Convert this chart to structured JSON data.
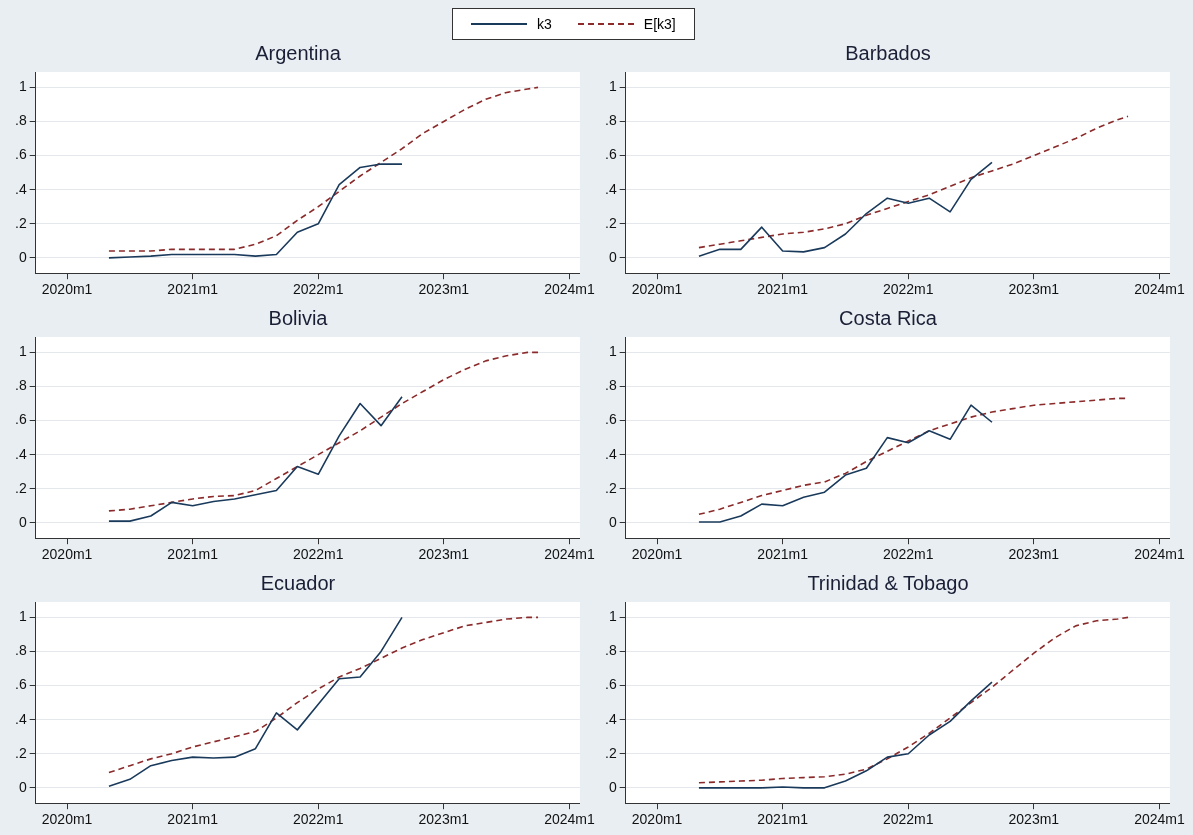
{
  "chart_data": [
    {
      "type": "line",
      "title": "Argentina",
      "legend": "top",
      "grid": "y",
      "line_style": "solid",
      "marker": "none",
      "xlim": [
        "2019-10",
        "2024-02"
      ],
      "ylim": [
        -0.09,
        1.09
      ],
      "xticks": [
        {
          "value": "2020-01",
          "label": "2020m1"
        },
        {
          "value": "2021-01",
          "label": "2021m1"
        },
        {
          "value": "2022-01",
          "label": "2022m1"
        },
        {
          "value": "2023-01",
          "label": "2023m1"
        },
        {
          "value": "2024-01",
          "label": "2024m1"
        }
      ],
      "yticks": [
        {
          "value": 0,
          "label": "0"
        },
        {
          "value": 0.2,
          "label": ".2"
        },
        {
          "value": 0.4,
          "label": ".4"
        },
        {
          "value": 0.6,
          "label": ".6"
        },
        {
          "value": 0.8,
          "label": ".8"
        },
        {
          "value": 1,
          "label": "1"
        }
      ],
      "series": [
        {
          "name": "k3",
          "color": "#1a3a5c",
          "x": [
            "2020-05",
            "2020-07",
            "2020-09",
            "2020-11",
            "2021-01",
            "2021-03",
            "2021-05",
            "2021-07",
            "2021-09",
            "2021-11",
            "2022-01",
            "2022-03",
            "2022-05",
            "2022-07",
            "2022-09"
          ],
          "values": [
            0,
            0.005,
            0.01,
            0.02,
            0.02,
            0.02,
            0.02,
            0.01,
            0.02,
            0.15,
            0.2,
            0.43,
            0.53,
            0.55,
            0.55
          ]
        },
        {
          "name": "E[k3]",
          "color": "#8b2a2a",
          "line_style": "dashed",
          "x": [
            "2020-05",
            "2020-07",
            "2020-09",
            "2020-11",
            "2021-01",
            "2021-03",
            "2021-05",
            "2021-07",
            "2021-09",
            "2021-11",
            "2022-01",
            "2022-03",
            "2022-05",
            "2022-07",
            "2022-09",
            "2022-11",
            "2023-01",
            "2023-03",
            "2023-05",
            "2023-07",
            "2023-09",
            "2023-10"
          ],
          "values": [
            0.04,
            0.04,
            0.04,
            0.05,
            0.05,
            0.05,
            0.05,
            0.08,
            0.13,
            0.22,
            0.3,
            0.39,
            0.48,
            0.56,
            0.64,
            0.73,
            0.8,
            0.87,
            0.93,
            0.97,
            0.99,
            1
          ]
        }
      ]
    },
    {
      "type": "line",
      "title": "Barbados",
      "grid": "y",
      "line_style": "solid",
      "marker": "none",
      "xlim": [
        "2019-10",
        "2024-02"
      ],
      "ylim": [
        -0.09,
        1.09
      ],
      "xticks": [
        {
          "value": "2020-01",
          "label": "2020m1"
        },
        {
          "value": "2021-01",
          "label": "2021m1"
        },
        {
          "value": "2022-01",
          "label": "2022m1"
        },
        {
          "value": "2023-01",
          "label": "2023m1"
        },
        {
          "value": "2024-01",
          "label": "2024m1"
        }
      ],
      "yticks": [
        {
          "value": 0,
          "label": "0"
        },
        {
          "value": 0.2,
          "label": ".2"
        },
        {
          "value": 0.4,
          "label": ".4"
        },
        {
          "value": 0.6,
          "label": ".6"
        },
        {
          "value": 0.8,
          "label": ".8"
        },
        {
          "value": 1,
          "label": "1"
        }
      ],
      "series": [
        {
          "color": "#1a3a5c",
          "x": [
            "2020-05",
            "2020-07",
            "2020-09",
            "2020-11",
            "2021-01",
            "2021-03",
            "2021-05",
            "2021-07",
            "2021-09",
            "2021-11",
            "2022-01",
            "2022-03",
            "2022-05",
            "2022-07",
            "2022-09"
          ],
          "values": [
            0.01,
            0.05,
            0.05,
            0.18,
            0.04,
            0.035,
            0.06,
            0.14,
            0.26,
            0.35,
            0.32,
            0.35,
            0.27,
            0.46,
            0.56
          ]
        },
        {
          "color": "#8b2a2a",
          "line_style": "dashed",
          "x": [
            "2020-05",
            "2020-07",
            "2020-09",
            "2020-11",
            "2021-01",
            "2021-03",
            "2021-05",
            "2021-07",
            "2021-09",
            "2021-11",
            "2022-01",
            "2022-03",
            "2022-05",
            "2022-07",
            "2022-09",
            "2022-11",
            "2023-01",
            "2023-03",
            "2023-05",
            "2023-07",
            "2023-09",
            "2023-10"
          ],
          "values": [
            0.06,
            0.08,
            0.1,
            0.12,
            0.14,
            0.15,
            0.17,
            0.2,
            0.25,
            0.29,
            0.33,
            0.37,
            0.42,
            0.47,
            0.51,
            0.55,
            0.6,
            0.65,
            0.7,
            0.76,
            0.81,
            0.83
          ]
        }
      ]
    },
    {
      "type": "line",
      "title": "Bolivia",
      "grid": "y",
      "line_style": "solid",
      "marker": "none",
      "xlim": [
        "2019-10",
        "2024-02"
      ],
      "ylim": [
        -0.09,
        1.09
      ],
      "xticks": [
        {
          "value": "2020-01",
          "label": "2020m1"
        },
        {
          "value": "2021-01",
          "label": "2021m1"
        },
        {
          "value": "2022-01",
          "label": "2022m1"
        },
        {
          "value": "2023-01",
          "label": "2023m1"
        },
        {
          "value": "2024-01",
          "label": "2024m1"
        }
      ],
      "yticks": [
        {
          "value": 0,
          "label": "0"
        },
        {
          "value": 0.2,
          "label": ".2"
        },
        {
          "value": 0.4,
          "label": ".4"
        },
        {
          "value": 0.6,
          "label": ".6"
        },
        {
          "value": 0.8,
          "label": ".8"
        },
        {
          "value": 1,
          "label": "1"
        }
      ],
      "series": [
        {
          "color": "#1a3a5c",
          "x": [
            "2020-05",
            "2020-07",
            "2020-09",
            "2020-11",
            "2021-01",
            "2021-03",
            "2021-05",
            "2021-07",
            "2021-09",
            "2021-11",
            "2022-01",
            "2022-03",
            "2022-05",
            "2022-07",
            "2022-09"
          ],
          "values": [
            0.01,
            0.01,
            0.04,
            0.12,
            0.1,
            0.125,
            0.14,
            0.165,
            0.19,
            0.33,
            0.285,
            0.51,
            0.7,
            0.57,
            0.74
          ]
        },
        {
          "color": "#8b2a2a",
          "line_style": "dashed",
          "x": [
            "2020-05",
            "2020-07",
            "2020-09",
            "2020-11",
            "2021-01",
            "2021-03",
            "2021-05",
            "2021-07",
            "2021-09",
            "2021-11",
            "2022-01",
            "2022-03",
            "2022-05",
            "2022-07",
            "2022-09",
            "2022-11",
            "2023-01",
            "2023-03",
            "2023-05",
            "2023-07",
            "2023-09",
            "2023-10"
          ],
          "values": [
            0.07,
            0.08,
            0.1,
            0.12,
            0.14,
            0.155,
            0.16,
            0.19,
            0.26,
            0.33,
            0.4,
            0.47,
            0.54,
            0.62,
            0.7,
            0.77,
            0.84,
            0.9,
            0.95,
            0.98,
            1,
            1
          ]
        }
      ]
    },
    {
      "type": "line",
      "title": "Costa Rica",
      "grid": "y",
      "line_style": "solid",
      "marker": "none",
      "xlim": [
        "2019-10",
        "2024-02"
      ],
      "ylim": [
        -0.09,
        1.09
      ],
      "xticks": [
        {
          "value": "2020-01",
          "label": "2020m1"
        },
        {
          "value": "2021-01",
          "label": "2021m1"
        },
        {
          "value": "2022-01",
          "label": "2022m1"
        },
        {
          "value": "2023-01",
          "label": "2023m1"
        },
        {
          "value": "2024-01",
          "label": "2024m1"
        }
      ],
      "yticks": [
        {
          "value": 0,
          "label": "0"
        },
        {
          "value": 0.2,
          "label": ".2"
        },
        {
          "value": 0.4,
          "label": ".4"
        },
        {
          "value": 0.6,
          "label": ".6"
        },
        {
          "value": 0.8,
          "label": ".8"
        },
        {
          "value": 1,
          "label": "1"
        }
      ],
      "series": [
        {
          "color": "#1a3a5c",
          "x": [
            "2020-05",
            "2020-07",
            "2020-09",
            "2020-11",
            "2021-01",
            "2021-03",
            "2021-05",
            "2021-07",
            "2021-09",
            "2021-11",
            "2022-01",
            "2022-03",
            "2022-05",
            "2022-07",
            "2022-09"
          ],
          "values": [
            0.005,
            0.005,
            0.04,
            0.11,
            0.1,
            0.15,
            0.18,
            0.28,
            0.32,
            0.5,
            0.47,
            0.54,
            0.49,
            0.69,
            0.59
          ]
        },
        {
          "color": "#8b2a2a",
          "line_style": "dashed",
          "x": [
            "2020-05",
            "2020-07",
            "2020-09",
            "2020-11",
            "2021-01",
            "2021-03",
            "2021-05",
            "2021-07",
            "2021-09",
            "2021-11",
            "2022-01",
            "2022-03",
            "2022-05",
            "2022-07",
            "2022-09",
            "2022-11",
            "2023-01",
            "2023-03",
            "2023-05",
            "2023-07",
            "2023-09",
            "2023-10"
          ],
          "values": [
            0.05,
            0.08,
            0.12,
            0.16,
            0.19,
            0.22,
            0.24,
            0.29,
            0.36,
            0.42,
            0.48,
            0.54,
            0.58,
            0.62,
            0.65,
            0.67,
            0.69,
            0.7,
            0.71,
            0.72,
            0.73,
            0.73
          ]
        }
      ]
    },
    {
      "type": "line",
      "title": "Ecuador",
      "grid": "y",
      "line_style": "solid",
      "marker": "none",
      "xlim": [
        "2019-10",
        "2024-02"
      ],
      "ylim": [
        -0.09,
        1.09
      ],
      "xticks": [
        {
          "value": "2020-01",
          "label": "2020m1"
        },
        {
          "value": "2021-01",
          "label": "2021m1"
        },
        {
          "value": "2022-01",
          "label": "2022m1"
        },
        {
          "value": "2023-01",
          "label": "2023m1"
        },
        {
          "value": "2024-01",
          "label": "2024m1"
        }
      ],
      "yticks": [
        {
          "value": 0,
          "label": "0"
        },
        {
          "value": 0.2,
          "label": ".2"
        },
        {
          "value": 0.4,
          "label": ".4"
        },
        {
          "value": 0.6,
          "label": ".6"
        },
        {
          "value": 0.8,
          "label": ".8"
        },
        {
          "value": 1,
          "label": "1"
        }
      ],
      "series": [
        {
          "color": "#1a3a5c",
          "x": [
            "2020-05",
            "2020-07",
            "2020-09",
            "2020-11",
            "2021-01",
            "2021-03",
            "2021-05",
            "2021-07",
            "2021-09",
            "2021-11",
            "2022-01",
            "2022-03",
            "2022-05",
            "2022-07",
            "2022-09"
          ],
          "values": [
            0.01,
            0.05,
            0.13,
            0.16,
            0.18,
            0.175,
            0.18,
            0.23,
            0.44,
            0.34,
            0.49,
            0.64,
            0.65,
            0.8,
            1
          ]
        },
        {
          "color": "#8b2a2a",
          "line_style": "dashed",
          "x": [
            "2020-05",
            "2020-07",
            "2020-09",
            "2020-11",
            "2021-01",
            "2021-03",
            "2021-05",
            "2021-07",
            "2021-09",
            "2021-11",
            "2022-01",
            "2022-03",
            "2022-05",
            "2022-07",
            "2022-09",
            "2022-11",
            "2023-01",
            "2023-03",
            "2023-05",
            "2023-07",
            "2023-09",
            "2023-10"
          ],
          "values": [
            0.09,
            0.13,
            0.17,
            0.2,
            0.24,
            0.27,
            0.3,
            0.33,
            0.41,
            0.5,
            0.58,
            0.65,
            0.7,
            0.76,
            0.82,
            0.87,
            0.91,
            0.95,
            0.97,
            0.99,
            1,
            1
          ]
        }
      ]
    },
    {
      "type": "line",
      "title": "Trinidad & Tobago",
      "grid": "y",
      "line_style": "solid",
      "marker": "none",
      "xlim": [
        "2019-10",
        "2024-02"
      ],
      "ylim": [
        -0.09,
        1.09
      ],
      "xticks": [
        {
          "value": "2020-01",
          "label": "2020m1"
        },
        {
          "value": "2021-01",
          "label": "2021m1"
        },
        {
          "value": "2022-01",
          "label": "2022m1"
        },
        {
          "value": "2023-01",
          "label": "2023m1"
        },
        {
          "value": "2024-01",
          "label": "2024m1"
        }
      ],
      "yticks": [
        {
          "value": 0,
          "label": "0"
        },
        {
          "value": 0.2,
          "label": ".2"
        },
        {
          "value": 0.4,
          "label": ".4"
        },
        {
          "value": 0.6,
          "label": ".6"
        },
        {
          "value": 0.8,
          "label": ".8"
        },
        {
          "value": 1,
          "label": "1"
        }
      ],
      "series": [
        {
          "color": "#1a3a5c",
          "x": [
            "2020-05",
            "2020-07",
            "2020-09",
            "2020-11",
            "2021-01",
            "2021-03",
            "2021-05",
            "2021-07",
            "2021-09",
            "2021-11",
            "2022-01",
            "2022-03",
            "2022-05",
            "2022-07",
            "2022-09"
          ],
          "values": [
            0,
            0,
            0,
            0,
            0.005,
            0,
            0,
            0.04,
            0.1,
            0.18,
            0.2,
            0.31,
            0.39,
            0.51,
            0.62
          ]
        },
        {
          "color": "#8b2a2a",
          "line_style": "dashed",
          "x": [
            "2020-05",
            "2020-07",
            "2020-09",
            "2020-11",
            "2021-01",
            "2021-03",
            "2021-05",
            "2021-07",
            "2021-09",
            "2021-11",
            "2022-01",
            "2022-03",
            "2022-05",
            "2022-07",
            "2022-09",
            "2022-11",
            "2023-01",
            "2023-03",
            "2023-05",
            "2023-07",
            "2023-09",
            "2023-10"
          ],
          "values": [
            0.03,
            0.035,
            0.04,
            0.045,
            0.055,
            0.06,
            0.065,
            0.08,
            0.11,
            0.17,
            0.24,
            0.32,
            0.41,
            0.5,
            0.59,
            0.69,
            0.79,
            0.88,
            0.95,
            0.98,
            0.99,
            1
          ]
        }
      ]
    }
  ]
}
